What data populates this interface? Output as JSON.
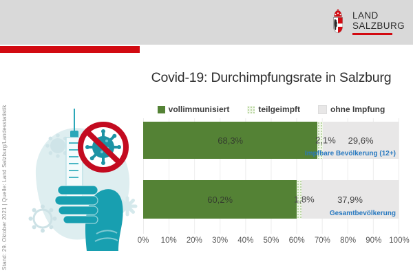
{
  "header": {
    "band_color": "#d9d9d9",
    "accent_bar_color": "#d20a11",
    "logo": {
      "line1": "LAND",
      "line2": "SALZBURG",
      "underline_color": "#d20a11"
    }
  },
  "source_note": "Stand: 29. Oktober 2021 | Quelle: Land Salzburg/Landesstatistik",
  "illustration": {
    "name": "hand-holding-syringe-no-virus",
    "colors": {
      "teal": "#189fb0",
      "light_teal": "#deeef0",
      "red": "#c30b20"
    }
  },
  "chart_data": {
    "type": "bar",
    "orientation": "horizontal_stacked",
    "title": "Covid-19: Durchimpfungsrate in Salzburg",
    "categories": [
      "Impfbare Bevölkerung (12+)",
      "Gesamtbevölkerung"
    ],
    "series": [
      {
        "name": "vollimmunisiert",
        "color": "#548235",
        "values": [
          68.3,
          60.2
        ],
        "labels": [
          "68,3%",
          "60,2%"
        ]
      },
      {
        "name": "teilgeimpft",
        "color": "#c6e0b4",
        "pattern": "dots",
        "values": [
          2.1,
          1.8
        ],
        "labels": [
          "2,1%",
          "1,8%"
        ]
      },
      {
        "name": "ohne Impfung",
        "color": "#e8e7e7",
        "values": [
          29.6,
          37.9
        ],
        "labels": [
          "29,6%",
          "37,9%"
        ]
      }
    ],
    "xlim": [
      0,
      100
    ],
    "x_ticks": [
      "0%",
      "10%",
      "20%",
      "30%",
      "40%",
      "50%",
      "60%",
      "70%",
      "80%",
      "90%",
      "100%"
    ],
    "grid": true,
    "legend_position": "top",
    "category_label_color": "#2879c0"
  }
}
